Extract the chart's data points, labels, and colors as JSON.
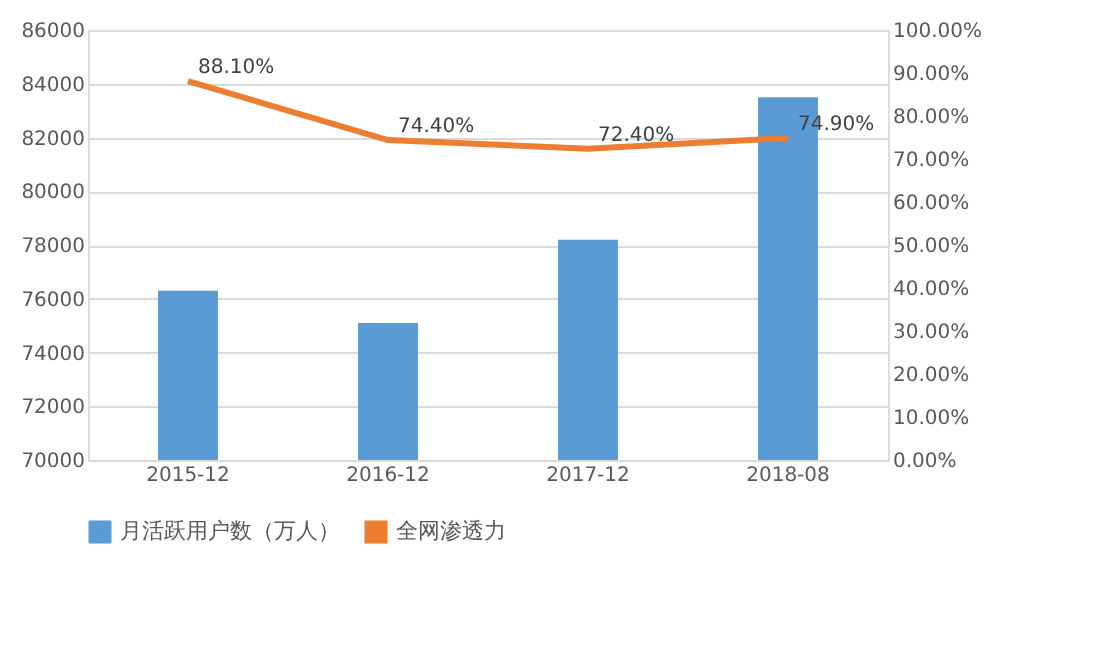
{
  "chart_data": {
    "type": "bar",
    "categories": [
      "2015-12",
      "2016-12",
      "2017-12",
      "2018-08"
    ],
    "series": [
      {
        "name": "月活跃用户数（万人）",
        "color": "#5b9bd5",
        "values": [
          76300,
          75100,
          78200,
          83500
        ]
      },
      {
        "name": "全网渗透力",
        "color": "#ed7d31",
        "type": "line",
        "axis": "y2",
        "values": [
          88.1,
          74.4,
          72.4,
          74.9
        ],
        "value_labels": [
          "88.10%",
          "74.40%",
          "72.40%",
          "74.90%"
        ]
      }
    ],
    "ylim": [
      70000,
      86000
    ],
    "yticks": [
      70000,
      72000,
      74000,
      76000,
      78000,
      80000,
      82000,
      84000,
      86000
    ],
    "y2lim": [
      0,
      100
    ],
    "y2ticks": [
      {
        "value": 0,
        "label": "0.00%"
      },
      {
        "value": 10,
        "label": "10.00%"
      },
      {
        "value": 20,
        "label": "20.00%"
      },
      {
        "value": 30,
        "label": "30.00%"
      },
      {
        "value": 40,
        "label": "40.00%"
      },
      {
        "value": 50,
        "label": "50.00%"
      },
      {
        "value": 60,
        "label": "60.00%"
      },
      {
        "value": 70,
        "label": "70.00%"
      },
      {
        "value": 80,
        "label": "80.00%"
      },
      {
        "value": 90,
        "label": "90.00%"
      },
      {
        "value": 100,
        "label": "100.00%"
      }
    ],
    "grid": "y",
    "legend": "bottom",
    "marker": "none",
    "line_style": "solid"
  }
}
